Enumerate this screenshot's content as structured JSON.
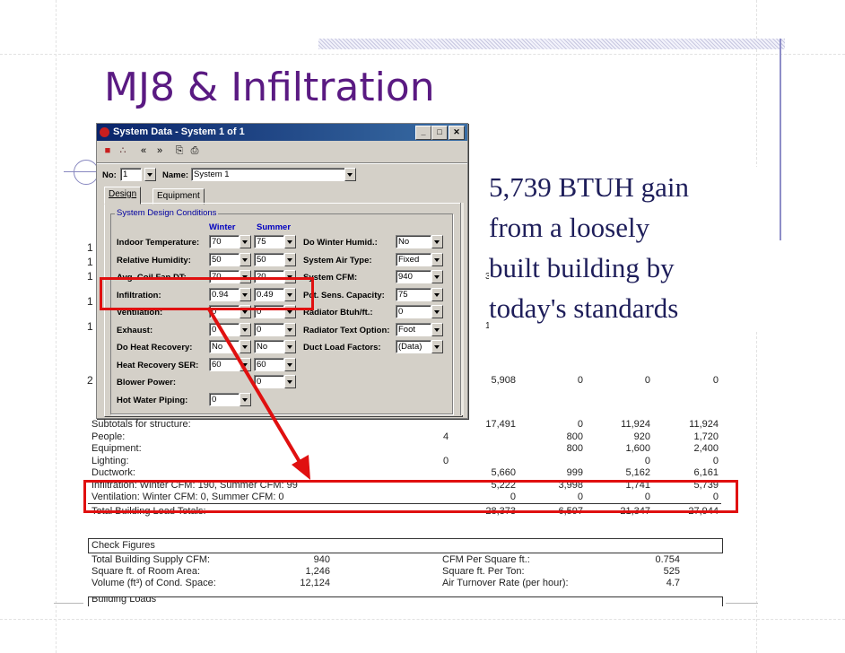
{
  "slide": {
    "title": "MJ8 & Infiltration",
    "callout_lines": [
      "5,739 BTUH gain",
      "from a loosely",
      "built building by",
      "today's standards"
    ],
    "accent_color": "#5a1a82",
    "annotation_color": "#e01010"
  },
  "dialog": {
    "title": "System Data - System 1 of 1",
    "toolbar_icons": [
      "exit-icon",
      "chart-icon",
      "prev-icon",
      "next-icon",
      "copy-icon",
      "paste-icon"
    ],
    "toolbar_glyphs": [
      "■",
      "∴",
      "«",
      "»",
      "⎘",
      "⎙"
    ],
    "no_label": "No:",
    "no_value": "1",
    "name_label": "Name:",
    "name_value": "System 1",
    "tabs": [
      {
        "label": "Design",
        "active": true
      },
      {
        "label": "Equipment",
        "active": false
      }
    ],
    "group_title": "System Design Conditions",
    "col_winter": "Winter",
    "col_summer": "Summer",
    "left_rows": [
      {
        "label": "Indoor Temperature:",
        "winter": "70",
        "summer": "75"
      },
      {
        "label": "Relative Humidity:",
        "winter": "50",
        "summer": "50"
      },
      {
        "label": "Avg. Coil Fan DT:",
        "winter": "70",
        "summer": "20"
      },
      {
        "label": "Infiltration:",
        "winter": "0.94",
        "summer": "0.49"
      },
      {
        "label": "Ventilation:",
        "winter": "0",
        "summer": "0"
      },
      {
        "label": "Exhaust:",
        "winter": "0",
        "summer": "0"
      },
      {
        "label": "Do Heat Recovery:",
        "winter": "No",
        "summer": "No"
      },
      {
        "label": "Heat Recovery SER:",
        "winter": "60",
        "summer": "60"
      },
      {
        "label": "Blower Power:",
        "winter": "",
        "summer": "0"
      },
      {
        "label": "Hot Water Piping:",
        "winter": "0",
        "summer": ""
      }
    ],
    "right_rows": [
      {
        "label": "Do Winter Humid.:",
        "value": "No"
      },
      {
        "label": "System Air Type:",
        "value": "Fixed"
      },
      {
        "label": "System CFM:",
        "value": "940"
      },
      {
        "label": "Pct. Sens. Capacity:",
        "value": "75"
      },
      {
        "label": "Radiator Btuh/ft.:",
        "value": "0"
      },
      {
        "label": "Radiator Text Option:",
        "value": "Foot"
      },
      {
        "label": "Duct Load Factors:",
        "value": "(Data)"
      }
    ]
  },
  "report": {
    "partial_rows": [
      {
        "c1": "5,908",
        "c2": "0",
        "c3": "0",
        "c4": "0"
      }
    ],
    "side_digits": [
      "1",
      "1",
      "1",
      "1",
      "1",
      "2"
    ],
    "partial_digits": [
      "3",
      "1"
    ],
    "rows": [
      {
        "label": "Subtotals for structure:",
        "qty": "",
        "c1": "17,491",
        "c2": "0",
        "c3": "11,924",
        "c4": "11,924"
      },
      {
        "label": "People:",
        "qty": "4",
        "c1": "",
        "c2": "800",
        "c3": "920",
        "c4": "1,720"
      },
      {
        "label": "Equipment:",
        "qty": "",
        "c1": "",
        "c2": "800",
        "c3": "1,600",
        "c4": "2,400"
      },
      {
        "label": "Lighting:",
        "qty": "0",
        "c1": "",
        "c2": "",
        "c3": "0",
        "c4": "0"
      },
      {
        "label": "Ductwork:",
        "qty": "",
        "c1": "5,660",
        "c2": "999",
        "c3": "5,162",
        "c4": "6,161"
      },
      {
        "label": "Infiltration: Winter CFM: 190, Summer CFM: 99",
        "qty": "",
        "c1": "5,222",
        "c2": "3,998",
        "c3": "1,741",
        "c4": "5,739"
      },
      {
        "label": "Ventilation: Winter CFM: 0, Summer CFM: 0",
        "qty": "",
        "c1": "0",
        "c2": "0",
        "c3": "0",
        "c4": "0"
      },
      {
        "label": "Total Building Load Totals:",
        "qty": "",
        "c1": "28,373",
        "c2": "6,597",
        "c3": "21,347",
        "c4": "27,944"
      }
    ],
    "check_title": "Check Figures",
    "check_rows": [
      {
        "label": "Total Building Supply CFM:",
        "value": "940",
        "label2": "CFM Per Square ft.:",
        "value2": "0.754"
      },
      {
        "label": "Square ft. of Room Area:",
        "value": "1,246",
        "label2": "Square ft. Per Ton:",
        "value2": "525"
      },
      {
        "label": "Volume (ft³) of Cond. Space:",
        "value": "12,124",
        "label2": "Air Turnover Rate (per hour):",
        "value2": "4.7"
      }
    ],
    "building_loads_label": "Building Loads"
  }
}
